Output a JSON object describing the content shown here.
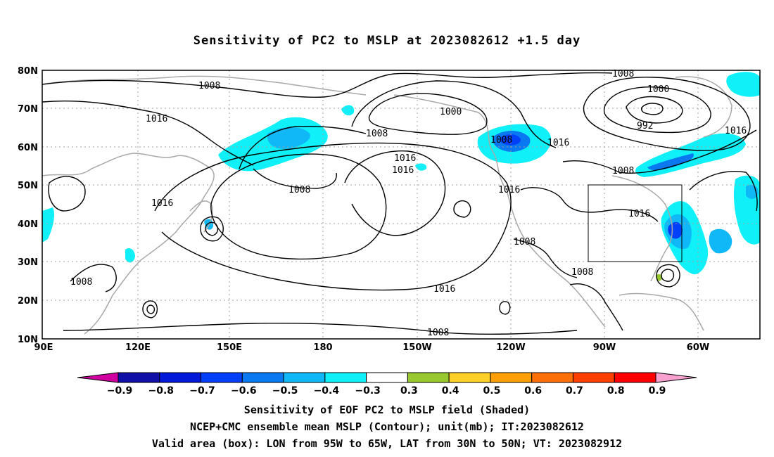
{
  "title": "Sensitivity of PC2 to MSLP at 2023082612 +1.5 day",
  "lat_labels": [
    "80N",
    "70N",
    "60N",
    "50N",
    "40N",
    "30N",
    "20N",
    "10N"
  ],
  "lon_labels": [
    "90E",
    "120E",
    "150E",
    "180",
    "150W",
    "120W",
    "90W",
    "60W"
  ],
  "contour_labels": [
    "1008",
    "1016",
    "1016",
    "1008",
    "1000",
    "1008",
    "1016",
    "1016",
    "1008",
    "1008",
    "1000",
    "992",
    "1016",
    "1016",
    "1016",
    "1016",
    "1008",
    "1008",
    "1008",
    "1016",
    "1008",
    "1008"
  ],
  "colorbar": {
    "labels": [
      "-0.9",
      "-0.8",
      "-0.7",
      "-0.6",
      "-0.5",
      "-0.4",
      "-0.3",
      "0.3",
      "0.4",
      "0.5",
      "0.6",
      "0.7",
      "0.8",
      "0.9"
    ],
    "colors": [
      "#d000a0",
      "#1010a8",
      "#0018d8",
      "#0040f8",
      "#0a78f0",
      "#10b8f8",
      "#10f0f8",
      "#ffffff",
      "#98c830",
      "#ffd028",
      "#ffa008",
      "#ff7008",
      "#ff4000",
      "#ff0000",
      "#f8a0d0"
    ]
  },
  "captions": [
    "Sensitivity of EOF PC2 to MSLP field (Shaded)",
    "NCEP+CMC ensemble mean MSLP (Contour); unit(mb); IT:2023082612",
    "Valid area (box): LON from 95W to 65W, LAT from 30N to 50N; VT: 2023082912"
  ]
}
